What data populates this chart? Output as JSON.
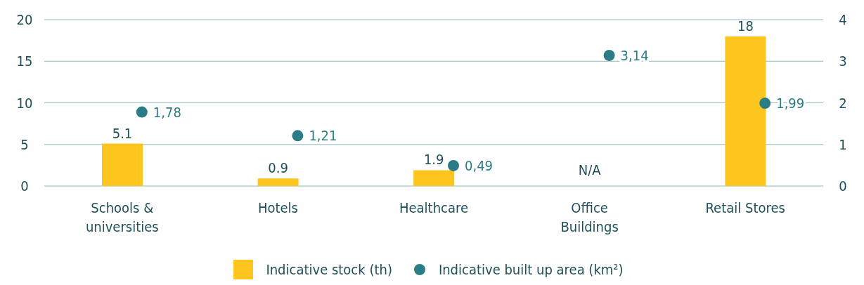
{
  "chart_data": {
    "type": "bar",
    "categories": [
      "Schools & universities",
      "Hotels",
      "Healthcare",
      "Office Buildings",
      "Retail Stores"
    ],
    "series": [
      {
        "name": "Indicative stock (th)",
        "color": "#fdc51d",
        "values": [
          5.1,
          0.9,
          1.9,
          null,
          18
        ],
        "value_labels": [
          "5.1",
          "0.9",
          "1.9",
          "N/A",
          "18"
        ]
      },
      {
        "name": "Indicative built up area (km²)",
        "type": "scatter",
        "axis": "y2",
        "color": "#2b7c85",
        "values": [
          1.78,
          1.21,
          0.49,
          3.14,
          1.99
        ],
        "value_labels": [
          "1,78",
          "1,21",
          "0,49",
          "3,14",
          "1,99"
        ]
      }
    ],
    "ylim": [
      0,
      20
    ],
    "yticks": [
      0,
      5,
      10,
      15,
      20
    ],
    "y2lim": [
      0,
      4
    ],
    "y2ticks": [
      0,
      1,
      2,
      3,
      4
    ],
    "grid": "y",
    "legend": "bottom",
    "marker": "circle"
  }
}
